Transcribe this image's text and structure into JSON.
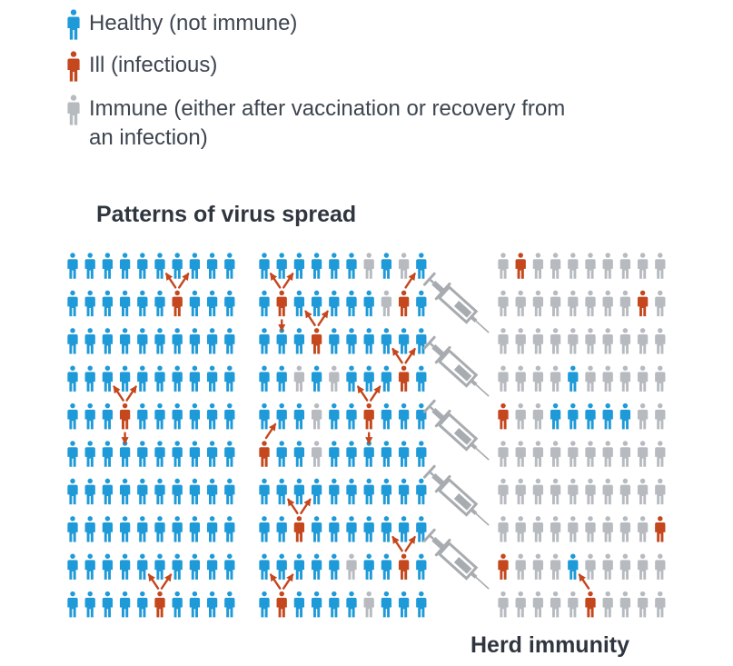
{
  "colors": {
    "healthy": "#1f9ad8",
    "ill": "#c4471d",
    "immune": "#b7bbc0",
    "syringe": "#a8acb0",
    "text": "#3d4550",
    "title": "#2f3640"
  },
  "legend": [
    {
      "status": "healthy",
      "label": "Healthy (not immune)"
    },
    {
      "status": "ill",
      "label": "Ill (infectious)"
    },
    {
      "status": "immune",
      "label": "Immune (either after vaccination or recovery from an infection)"
    }
  ],
  "diagram": {
    "title": "Patterns of virus spread",
    "caption": "Herd immunity",
    "panels": [
      {
        "id": "no-immunity",
        "rows": [
          "HHHHHHHHHH",
          "HHHHHHIHHH",
          "HHHHHHHHHH",
          "HHHHHHHHHH",
          "HHHIHHHHHH",
          "HHHHHHHHHH",
          "HHHHHHHHHH",
          "HHHHHHHHHH",
          "HHHHHHHHHH",
          "HHHHHIHHHH"
        ],
        "arrows": [
          {
            "from": [
              1,
              6
            ],
            "dirs": [
              "up-left",
              "up-right"
            ]
          },
          {
            "from": [
              4,
              3
            ],
            "dirs": [
              "up-left",
              "up-right",
              "down"
            ]
          },
          {
            "from": [
              9,
              5
            ],
            "dirs": [
              "up-left",
              "up-right"
            ]
          }
        ]
      },
      {
        "id": "partial-immunity",
        "rows": [
          "HHHHHHGHGH",
          "HIHHHHHGIH",
          "HHHIHHHHHH",
          "HHGHGHHHIH",
          "HHHGHHIHHH",
          "IHHGHHHHHH",
          "HHHHHHHHHH",
          "HHIHHHHHHH",
          "HHHHHGHHIH",
          "HIHHHHGHHH"
        ],
        "arrows": [
          {
            "from": [
              1,
              1
            ],
            "dirs": [
              "up-left",
              "up-right",
              "down"
            ]
          },
          {
            "from": [
              1,
              8
            ],
            "dirs": [
              "up-right"
            ]
          },
          {
            "from": [
              2,
              3
            ],
            "dirs": [
              "up-left",
              "up-right"
            ]
          },
          {
            "from": [
              3,
              8
            ],
            "dirs": [
              "up-left",
              "up-right"
            ]
          },
          {
            "from": [
              4,
              6
            ],
            "dirs": [
              "up-left",
              "up-right",
              "down"
            ]
          },
          {
            "from": [
              5,
              0
            ],
            "dirs": [
              "up-right"
            ]
          },
          {
            "from": [
              7,
              2
            ],
            "dirs": [
              "up-left",
              "up-right"
            ]
          },
          {
            "from": [
              8,
              8
            ],
            "dirs": [
              "up-left",
              "up-right"
            ]
          },
          {
            "from": [
              9,
              1
            ],
            "dirs": [
              "up-left",
              "up-right"
            ]
          }
        ]
      },
      {
        "id": "herd-immunity",
        "rows": [
          "GIGGGGGGGG",
          "GGGGGGGGIG",
          "GGGGGGGGGG",
          "GGGGHGGGGG",
          "IGGHHHHHGG",
          "GGGGGGGGGG",
          "GGGGGGGGGG",
          "GGGGGGGGGI",
          "IGGGHGGGGG",
          "GGGGGIGGGG"
        ],
        "arrows": [
          {
            "from": [
              9,
              5
            ],
            "dirs": [
              "up-left"
            ]
          }
        ]
      }
    ],
    "syringe_count": 5
  }
}
